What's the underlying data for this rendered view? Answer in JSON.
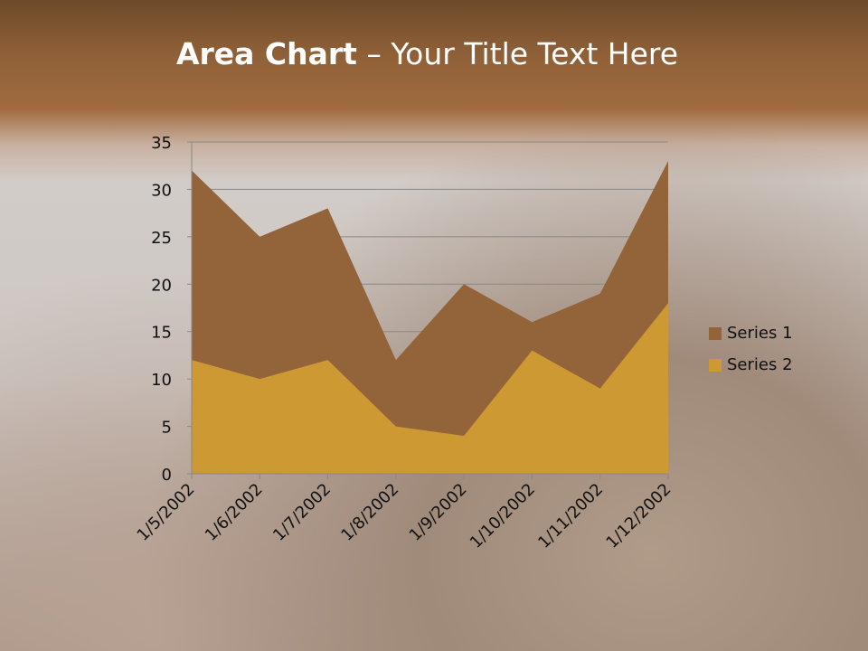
{
  "title": {
    "bold": "Area Chart",
    "rest": " – Your Title Text Here"
  },
  "chart_data": {
    "type": "area",
    "categories": [
      "1/5/2002",
      "1/6/2002",
      "1/7/2002",
      "1/8/2002",
      "1/9/2002",
      "1/10/2002",
      "1/11/2002",
      "1/12/2002"
    ],
    "series": [
      {
        "name": "Series 1",
        "values": [
          32,
          25,
          28,
          12,
          20,
          16,
          19,
          33
        ],
        "color": "#93633a"
      },
      {
        "name": "Series 2",
        "values": [
          12,
          10,
          12,
          5,
          4,
          13,
          9,
          18
        ],
        "color": "#cc9933"
      }
    ],
    "ylim": [
      0,
      35
    ],
    "yticks": [
      0,
      5,
      10,
      15,
      20,
      25,
      30,
      35
    ],
    "grid": true,
    "legend": "right"
  }
}
